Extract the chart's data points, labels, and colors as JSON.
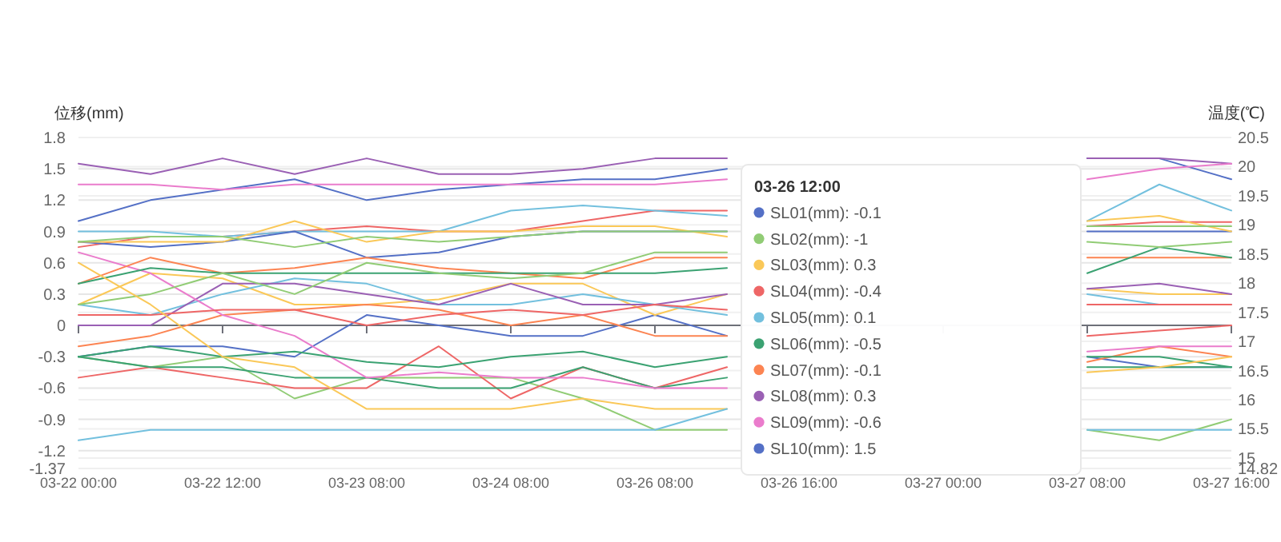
{
  "chart_data": {
    "type": "line",
    "ylabel": "位移(mm)",
    "y2label": "温度(℃)",
    "categories": [
      "03-22 00:00",
      null,
      "03-22 12:00",
      null,
      "03-23 08:00",
      null,
      "03-24 08:00",
      null,
      "03-26 08:00",
      null,
      "03-26 16:00",
      null,
      "03-27 00:00",
      null,
      "03-27 08:00",
      null,
      "03-27 16:00"
    ],
    "ylim": [
      -1.37,
      1.8
    ],
    "yticks": [
      -1.37,
      -1.2,
      -0.9,
      -0.6,
      -0.3,
      0,
      0.3,
      0.6,
      0.9,
      1.2,
      1.5,
      1.8
    ],
    "y2lim": [
      14.82,
      20.5
    ],
    "y2ticks": [
      14.82,
      15,
      15.5,
      16,
      16.5,
      17,
      17.5,
      18,
      18.5,
      19,
      19.5,
      20,
      20.5
    ],
    "grid": "y",
    "legend": "bottom right",
    "marker": "none",
    "line_style": "solid",
    "series": [
      {
        "name": "SL01",
        "color": "#5470c6",
        "values": [
          -0.3,
          -0.2,
          -0.2,
          -0.3,
          0.1,
          0,
          -0.1,
          -0.1,
          0.1,
          -0.1,
          null,
          null,
          null,
          null,
          -0.3,
          -0.4,
          -0.4
        ]
      },
      {
        "name": "SL02",
        "color": "#91cc75",
        "values": [
          -0.3,
          -0.4,
          -0.3,
          -0.7,
          -0.5,
          -0.5,
          -0.5,
          -0.7,
          -1.0,
          -1.0,
          null,
          null,
          null,
          null,
          -1.0,
          -1.1,
          -0.9
        ]
      },
      {
        "name": "SL03",
        "color": "#fac858",
        "values": [
          0.2,
          0.5,
          0.45,
          0.2,
          0.2,
          0.25,
          0.4,
          0.4,
          0.1,
          0.3,
          null,
          null,
          null,
          null,
          0.35,
          0.3,
          0.3
        ]
      },
      {
        "name": "SL04",
        "color": "#ee6666",
        "values": [
          -0.5,
          -0.4,
          -0.5,
          -0.6,
          -0.6,
          -0.2,
          -0.7,
          -0.4,
          -0.6,
          -0.4,
          null,
          null,
          null,
          null,
          -0.1,
          -0.05,
          0
        ]
      },
      {
        "name": "SL05",
        "color": "#73c0de",
        "values": [
          0.2,
          0.1,
          0.3,
          0.45,
          0.4,
          0.2,
          0.2,
          0.3,
          0.2,
          0.1,
          null,
          null,
          null,
          null,
          0.3,
          0.2,
          0.2
        ]
      },
      {
        "name": "SL06",
        "color": "#3ba272",
        "values": [
          -0.3,
          -0.4,
          -0.4,
          -0.5,
          -0.5,
          -0.6,
          -0.6,
          -0.4,
          -0.6,
          -0.5,
          null,
          null,
          null,
          null,
          -0.4,
          -0.4,
          -0.4
        ]
      },
      {
        "name": "SL07",
        "color": "#fc8452",
        "values": [
          -0.2,
          -0.1,
          0.1,
          0.15,
          0.2,
          0.15,
          0,
          0.1,
          -0.1,
          -0.1,
          null,
          null,
          null,
          null,
          -0.35,
          -0.2,
          -0.3
        ]
      },
      {
        "name": "SL08",
        "color": "#9a60b4",
        "values": [
          0,
          0,
          0.4,
          0.4,
          0.3,
          0.2,
          0.4,
          0.2,
          0.2,
          0.3,
          null,
          null,
          null,
          null,
          0.35,
          0.4,
          0.3
        ]
      },
      {
        "name": "SL09",
        "color": "#ea7ccc",
        "values": [
          0.7,
          0.5,
          0.1,
          -0.1,
          -0.5,
          -0.45,
          -0.5,
          -0.5,
          -0.6,
          -0.6,
          null,
          null,
          null,
          null,
          -0.25,
          -0.2,
          -0.2
        ]
      },
      {
        "name": "SL10",
        "color": "#5470c6",
        "values": [
          1.0,
          1.2,
          1.3,
          1.4,
          1.2,
          1.3,
          1.35,
          1.4,
          1.4,
          1.5,
          null,
          null,
          null,
          null,
          1.6,
          1.6,
          1.4
        ]
      },
      {
        "color": "#9a60b4",
        "values": [
          1.55,
          1.45,
          1.6,
          1.45,
          1.6,
          1.45,
          1.45,
          1.5,
          1.6,
          1.6,
          null,
          null,
          null,
          null,
          1.6,
          1.6,
          1.55
        ]
      },
      {
        "color": "#ea7ccc",
        "values": [
          1.35,
          1.35,
          1.3,
          1.35,
          1.35,
          1.35,
          1.35,
          1.35,
          1.35,
          1.4,
          null,
          null,
          null,
          null,
          1.4,
          1.5,
          1.55
        ]
      },
      {
        "color": "#ee6666",
        "values": [
          0.75,
          0.85,
          0.85,
          0.9,
          0.95,
          0.9,
          0.9,
          1.0,
          1.1,
          1.1,
          null,
          null,
          null,
          null,
          0.95,
          0.99,
          0.99
        ]
      },
      {
        "color": "#73c0de",
        "values": [
          0.9,
          0.9,
          0.85,
          0.9,
          0.9,
          0.9,
          1.1,
          1.15,
          1.1,
          1.05,
          null,
          null,
          null,
          null,
          1.0,
          1.35,
          1.1
        ]
      },
      {
        "color": "#5470c6",
        "values": [
          0.8,
          0.75,
          0.8,
          0.9,
          0.65,
          0.7,
          0.85,
          0.9,
          0.9,
          0.9,
          null,
          null,
          null,
          null,
          0.9,
          0.9,
          0.9
        ]
      },
      {
        "color": "#fac858",
        "values": [
          0.8,
          0.8,
          0.8,
          1.0,
          0.8,
          0.9,
          0.9,
          0.95,
          0.95,
          0.85,
          null,
          null,
          null,
          null,
          1.0,
          1.05,
          0.9
        ]
      },
      {
        "color": "#91cc75",
        "values": [
          0.8,
          0.85,
          0.85,
          0.75,
          0.85,
          0.8,
          0.85,
          0.9,
          0.9,
          0.9,
          null,
          null,
          null,
          null,
          0.95,
          0.95,
          0.95
        ]
      },
      {
        "color": "#fc8452",
        "values": [
          0.4,
          0.65,
          0.5,
          0.55,
          0.65,
          0.55,
          0.5,
          0.45,
          0.65,
          0.65,
          null,
          null,
          null,
          null,
          0.65,
          0.65,
          0.65
        ]
      },
      {
        "color": "#3ba272",
        "values": [
          0.4,
          0.55,
          0.5,
          0.5,
          0.5,
          0.5,
          0.5,
          0.5,
          0.5,
          0.55,
          null,
          null,
          null,
          null,
          0.5,
          0.75,
          0.65
        ]
      },
      {
        "color": "#91cc75",
        "values": [
          0.2,
          0.3,
          0.5,
          0.3,
          0.6,
          0.5,
          0.45,
          0.5,
          0.7,
          0.7,
          null,
          null,
          null,
          null,
          0.8,
          0.75,
          0.8
        ]
      },
      {
        "color": "#ee6666",
        "values": [
          0.1,
          0.1,
          0.15,
          0.15,
          0,
          0.1,
          0.15,
          0.1,
          0.2,
          0.15,
          null,
          null,
          null,
          null,
          0.2,
          0.2,
          0.2
        ]
      },
      {
        "color": "#3ba272",
        "values": [
          -0.3,
          -0.2,
          -0.3,
          -0.25,
          -0.35,
          -0.4,
          -0.3,
          -0.25,
          -0.4,
          -0.3,
          null,
          null,
          null,
          null,
          -0.3,
          -0.3,
          -0.4
        ]
      },
      {
        "color": "#fac858",
        "values": [
          0.6,
          0.2,
          -0.3,
          -0.4,
          -0.8,
          -0.8,
          -0.8,
          -0.7,
          -0.8,
          -0.8,
          null,
          null,
          null,
          null,
          -0.45,
          -0.4,
          -0.3
        ]
      },
      {
        "color": "#73c0de",
        "values": [
          -1.1,
          -1.0,
          -1.0,
          -1.0,
          -1.0,
          -1.0,
          -1.0,
          -1.0,
          -1.0,
          -0.8,
          null,
          null,
          null,
          null,
          -1.0,
          -1.0,
          -1.0
        ]
      }
    ],
    "annotations": [
      "03-26 12:00",
      "(mm): -0.1",
      "(mm): -1",
      "(mm): 0.3",
      "(mm): -0.4",
      "(mm): 0.1",
      "(mm): -0.5",
      "(mm): -0.1",
      "(mm): 0.3",
      "(mm): -0.6",
      "(mm): 1.5"
    ]
  }
}
